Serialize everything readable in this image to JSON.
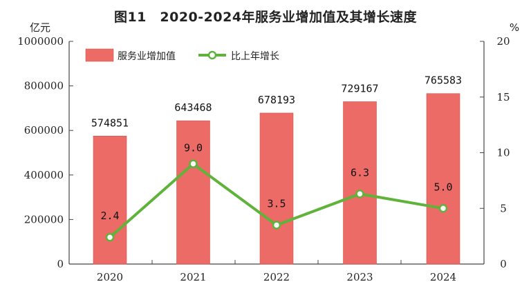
{
  "chart_title": "图11　2020-2024年服务业增加值及其增长速度",
  "left_unit": "亿元",
  "right_unit": "%",
  "colors": {
    "bar": "#ec6b66",
    "bar_stroke": "#d9534f",
    "line": "#5fb33a",
    "marker_fill": "#ffffff",
    "axis": "#444444"
  },
  "legend": {
    "bar_label": "服务业增加值",
    "line_label": "比上年增长",
    "placement": "top-left"
  },
  "chart_data": {
    "type": "bar",
    "categories": [
      "2020",
      "2021",
      "2022",
      "2023",
      "2024"
    ],
    "series": [
      {
        "name": "服务业增加值",
        "type": "bar",
        "axis": "left",
        "values": [
          574851,
          643468,
          678193,
          729167,
          765583
        ],
        "value_labels": [
          "574851",
          "643468",
          "678193",
          "729167",
          "765583"
        ]
      },
      {
        "name": "比上年增长",
        "type": "line",
        "axis": "right",
        "values": [
          2.4,
          9.0,
          3.5,
          6.3,
          5.0
        ],
        "value_labels": [
          "2.4",
          "9.0",
          "3.5",
          "6.3",
          "5.0"
        ]
      }
    ],
    "y_left": {
      "min": 0,
      "max": 1000000,
      "ticks": [
        0,
        200000,
        400000,
        600000,
        800000,
        1000000
      ],
      "tick_labels": [
        "0",
        "200000",
        "400000",
        "600000",
        "800000",
        "1000000"
      ]
    },
    "y_right": {
      "min": 0,
      "max": 20,
      "ticks": [
        0,
        5,
        10,
        15,
        20
      ],
      "tick_labels": [
        "0",
        "5",
        "10",
        "15",
        "20"
      ]
    },
    "grid": false
  }
}
